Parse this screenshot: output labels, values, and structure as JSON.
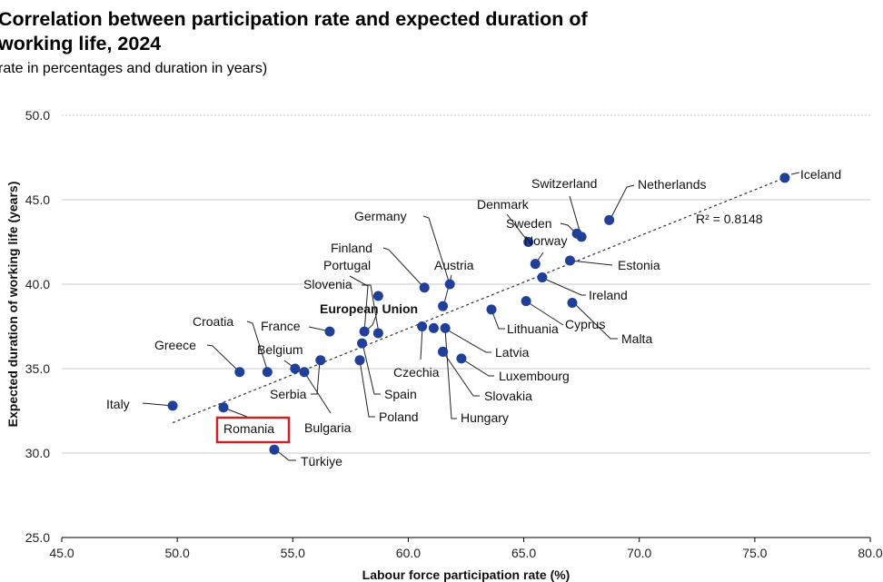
{
  "header": {
    "title_line1": "Correlation between participation rate and expected duration of",
    "title_line2": "working life, 2024",
    "subtitle": "rate in percentages and duration in years)"
  },
  "chart_data": {
    "type": "scatter",
    "title": "Correlation between participation rate and expected duration of working life, 2024",
    "subtitle": "(rate in percentages and duration in years)",
    "xlabel": "Labour force participation rate (%)",
    "ylabel": "Expected duration of working life (years)",
    "xlim": [
      45.0,
      80.0
    ],
    "ylim": [
      25.0,
      50.0
    ],
    "xticks": [
      "45.0",
      "50.0",
      "55.0",
      "60.0",
      "65.0",
      "70.0",
      "75.0",
      "80.0"
    ],
    "yticks": [
      "25.0",
      "30.0",
      "35.0",
      "40.0",
      "45.0",
      "50.0"
    ],
    "grid": "horizontal",
    "marker_color": "#1f3f99",
    "highlight_color": "#c8232c",
    "trendline": {
      "type": "linear",
      "x_range": [
        49.8,
        76.3
      ],
      "y_range": [
        31.8,
        46.3
      ],
      "r2_label": "R² = 0.8148"
    },
    "points": [
      {
        "name": "Iceland",
        "x": 76.3,
        "y": 46.3
      },
      {
        "name": "Netherlands",
        "x": 68.7,
        "y": 43.8
      },
      {
        "name": "Switzerland",
        "x": 67.5,
        "y": 42.8
      },
      {
        "name": "Sweden",
        "x": 67.3,
        "y": 43.0
      },
      {
        "name": "Denmark",
        "x": 65.2,
        "y": 42.5
      },
      {
        "name": "Norway",
        "x": 65.5,
        "y": 41.2
      },
      {
        "name": "Estonia",
        "x": 67.0,
        "y": 41.4
      },
      {
        "name": "Ireland",
        "x": 65.8,
        "y": 40.4
      },
      {
        "name": "Cyprus",
        "x": 65.1,
        "y": 39.0
      },
      {
        "name": "Malta",
        "x": 67.1,
        "y": 38.9
      },
      {
        "name": "Lithuania",
        "x": 63.6,
        "y": 38.5
      },
      {
        "name": "Austria",
        "x": 61.8,
        "y": 40.0
      },
      {
        "name": "Germany",
        "x": 61.5,
        "y": 38.7
      },
      {
        "name": "Finland",
        "x": 60.7,
        "y": 39.8
      },
      {
        "name": "Czechia",
        "x": 60.6,
        "y": 37.5
      },
      {
        "name": "Latvia",
        "x": 61.6,
        "y": 37.4
      },
      {
        "name": "European Union",
        "x": 61.1,
        "y": 37.4
      },
      {
        "name": "Slovakia",
        "x": 61.5,
        "y": 36.0
      },
      {
        "name": "Hungary",
        "x": 61.5,
        "y": 36.0
      },
      {
        "name": "Luxembourg",
        "x": 62.3,
        "y": 35.6
      },
      {
        "name": "Slovenia",
        "x": 58.7,
        "y": 39.3
      },
      {
        "name": "Portugal",
        "x": 58.1,
        "y": 37.2
      },
      {
        "name": "Spain",
        "x": 58.0,
        "y": 36.5
      },
      {
        "name": "Poland",
        "x": 57.9,
        "y": 35.5
      },
      {
        "name": "France",
        "x": 56.6,
        "y": 37.2
      },
      {
        "name": "Bulgaria",
        "x": 56.2,
        "y": 35.5
      },
      {
        "name": "Serbia",
        "x": 55.5,
        "y": 34.8
      },
      {
        "name": "Belgium",
        "x": 55.1,
        "y": 35.0
      },
      {
        "name": "Croatia",
        "x": 53.9,
        "y": 34.8
      },
      {
        "name": "Greece",
        "x": 52.7,
        "y": 34.8
      },
      {
        "name": "Romania",
        "x": 52.0,
        "y": 32.7
      },
      {
        "name": "Italy",
        "x": 49.8,
        "y": 32.8
      },
      {
        "name": "Türkiye",
        "x": 54.2,
        "y": 30.2
      }
    ],
    "extra_points": [
      {
        "x": 58.7,
        "y": 37.1
      }
    ]
  }
}
